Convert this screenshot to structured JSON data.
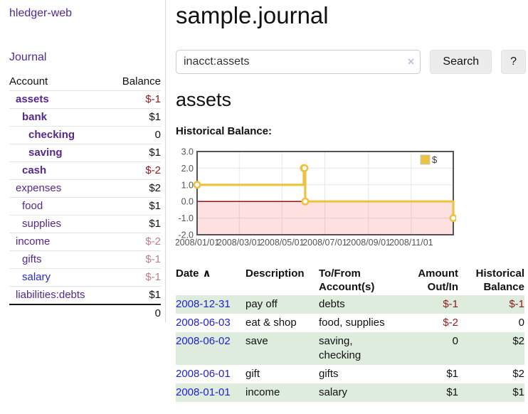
{
  "app": {
    "title": "hledger-web"
  },
  "colors": {
    "link_purple": "#54288c",
    "link_blue": "#2a2ad0",
    "negative_strong": "#8e1a1a",
    "negative_muted": "#bb7f88",
    "row_stripe_green": "#ddecdd",
    "series_gold": "#EDC240"
  },
  "sidebar": {
    "journal_label": "Journal",
    "accounts_table": {
      "headers": {
        "account": "Account",
        "balance": "Balance"
      },
      "rows": [
        {
          "name": "assets",
          "level": 1,
          "bold": true,
          "link": "purple",
          "balance": "$-1",
          "balance_style": "neg-strong"
        },
        {
          "name": "bank",
          "level": 2,
          "bold": true,
          "link": "purple",
          "balance": "$1",
          "balance_style": ""
        },
        {
          "name": "checking",
          "level": 3,
          "bold": true,
          "link": "purple",
          "balance": "0",
          "balance_style": ""
        },
        {
          "name": "saving",
          "level": 3,
          "bold": true,
          "link": "purple",
          "balance": "$1",
          "balance_style": ""
        },
        {
          "name": "cash",
          "level": 2,
          "bold": true,
          "link": "purple",
          "balance": "$-2",
          "balance_style": "neg-strong"
        },
        {
          "name": "expenses",
          "level": 1,
          "bold": false,
          "link": "purple",
          "balance": "$2",
          "balance_style": ""
        },
        {
          "name": "food",
          "level": 2,
          "bold": false,
          "link": "purple",
          "balance": "$1",
          "balance_style": ""
        },
        {
          "name": "supplies",
          "level": 2,
          "bold": false,
          "link": "purple",
          "balance": "$1",
          "balance_style": ""
        },
        {
          "name": "income",
          "level": 1,
          "bold": false,
          "link": "purple",
          "balance": "$-2",
          "balance_style": "neg-muted"
        },
        {
          "name": "gifts",
          "level": 2,
          "bold": false,
          "link": "purple",
          "balance": "$-1",
          "balance_style": "neg-muted"
        },
        {
          "name": "salary",
          "level": 2,
          "bold": false,
          "link": "blue",
          "balance": "$-1",
          "balance_style": "neg-muted"
        },
        {
          "name": "liabilities:debts",
          "level": 1,
          "bold": false,
          "link": "purple",
          "balance": "$1",
          "balance_style": ""
        }
      ],
      "total": "0"
    }
  },
  "main": {
    "title": "sample.journal",
    "search": {
      "value": "inacct:assets",
      "clear_icon": "×",
      "button_label": "Search",
      "help_label": "?"
    },
    "section_title": "assets",
    "chart_label": "Historical Balance:"
  },
  "chart_data": {
    "type": "line",
    "title": "Historical Balance",
    "step": true,
    "series": [
      {
        "name": "$",
        "color": "#EDC240",
        "points": [
          {
            "date": "2008-01-01",
            "value": 1
          },
          {
            "date": "2008-06-01",
            "value": 2
          },
          {
            "date": "2008-06-02",
            "value": 2
          },
          {
            "date": "2008-06-03",
            "value": 0
          },
          {
            "date": "2008-12-31",
            "value": -1
          }
        ]
      }
    ],
    "x_range": [
      "2008-01-01",
      "2008-12-31"
    ],
    "x_ticks": [
      {
        "date": "2008-01-01",
        "label": "2008/01/01"
      },
      {
        "date": "2008-03-01",
        "label": "2008/03/01"
      },
      {
        "date": "2008-05-01",
        "label": "2008/05/01"
      },
      {
        "date": "2008-07-01",
        "label": "2008/07/01"
      },
      {
        "date": "2008-09-01",
        "label": "2008/09/01"
      },
      {
        "date": "2008-11-01",
        "label": "2008/11/01"
      }
    ],
    "y_ticks": [
      {
        "value": 3,
        "label": "3.0"
      },
      {
        "value": 2,
        "label": "2.0"
      },
      {
        "value": 1,
        "label": "1.0"
      },
      {
        "value": 0,
        "label": "0.0"
      },
      {
        "value": -1,
        "label": "-1.0"
      },
      {
        "value": -2,
        "label": "-2.0"
      }
    ],
    "ylim": [
      -2,
      3
    ],
    "grid": true,
    "legend_position": "top-right",
    "negative_region_color": "rgba(255,0,0,0.12)",
    "zero_line_color": "#8b0000",
    "border_color": "#545454",
    "gridline_color": "#e6e6e6",
    "axis_label_color": "#545454"
  },
  "register_table": {
    "sort_icon": "∧",
    "headers": [
      {
        "label": "Date",
        "label2": "",
        "align": "left"
      },
      {
        "label": "Description",
        "label2": "",
        "align": "left"
      },
      {
        "label": "To/From",
        "label2": "Account(s)",
        "align": "left"
      },
      {
        "label": "Amount",
        "label2": "Out/In",
        "align": "right"
      },
      {
        "label": "Historical",
        "label2": "Balance",
        "align": "right"
      }
    ],
    "rows": [
      {
        "date": "2008-12-31",
        "description": "pay off",
        "accounts": "debts",
        "amount": "$-1",
        "amount_neg": true,
        "balance": "$-1",
        "balance_neg": true,
        "shade": true
      },
      {
        "date": "2008-06-03",
        "description": "eat & shop",
        "accounts": "food, supplies",
        "amount": "$-2",
        "amount_neg": true,
        "balance": "0",
        "balance_neg": false,
        "shade": false
      },
      {
        "date": "2008-06-02",
        "description": "save",
        "accounts": "saving, checking",
        "amount": "0",
        "amount_neg": false,
        "balance": "$2",
        "balance_neg": false,
        "shade": true
      },
      {
        "date": "2008-06-01",
        "description": "gift",
        "accounts": "gifts",
        "amount": "$1",
        "amount_neg": false,
        "balance": "$2",
        "balance_neg": false,
        "shade": false
      },
      {
        "date": "2008-01-01",
        "description": "income",
        "accounts": "salary",
        "amount": "$1",
        "amount_neg": false,
        "balance": "$1",
        "balance_neg": false,
        "shade": true
      }
    ]
  }
}
